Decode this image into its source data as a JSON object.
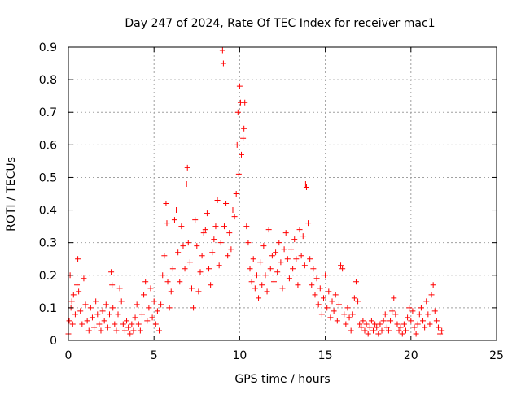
{
  "chart_data": {
    "type": "scatter",
    "title": "Day 247 of 2024, Rate Of TEC Index for receiver mac1",
    "xlabel": "GPS time / hours",
    "ylabel": "ROTI / TECUs",
    "xlim": [
      0,
      25
    ],
    "ylim": [
      0,
      0.9
    ],
    "x_ticks": [
      0,
      5,
      10,
      15,
      20,
      25
    ],
    "x_tick_labels": [
      "0",
      "5",
      "10",
      "15",
      "20",
      "25"
    ],
    "y_ticks": [
      0,
      0.1,
      0.2,
      0.3,
      0.4,
      0.5,
      0.6,
      0.7,
      0.8,
      0.9
    ],
    "y_tick_labels": [
      "0",
      "0.1",
      "0.2",
      "0.3",
      "0.4",
      "0.5",
      "0.6",
      "0.7",
      "0.8",
      "0.9"
    ],
    "grid": true,
    "marker": "+",
    "color": "#ff0000",
    "series": [
      {
        "points": [
          [
            0.0,
            0.02
          ],
          [
            0.05,
            0.06
          ],
          [
            0.1,
            0.2
          ],
          [
            0.15,
            0.1
          ],
          [
            0.2,
            0.12
          ],
          [
            0.25,
            0.05
          ],
          [
            0.3,
            0.14
          ],
          [
            0.4,
            0.08
          ],
          [
            0.5,
            0.17
          ],
          [
            0.55,
            0.25
          ],
          [
            0.6,
            0.15
          ],
          [
            0.7,
            0.09
          ],
          [
            0.8,
            0.05
          ],
          [
            0.9,
            0.19
          ],
          [
            1.0,
            0.11
          ],
          [
            1.1,
            0.06
          ],
          [
            1.2,
            0.03
          ],
          [
            1.3,
            0.1
          ],
          [
            1.4,
            0.07
          ],
          [
            1.5,
            0.04
          ],
          [
            1.6,
            0.12
          ],
          [
            1.7,
            0.08
          ],
          [
            1.8,
            0.05
          ],
          [
            1.9,
            0.03
          ],
          [
            2.0,
            0.09
          ],
          [
            2.1,
            0.06
          ],
          [
            2.2,
            0.11
          ],
          [
            2.3,
            0.04
          ],
          [
            2.4,
            0.08
          ],
          [
            2.5,
            0.21
          ],
          [
            2.55,
            0.17
          ],
          [
            2.6,
            0.1
          ],
          [
            2.7,
            0.05
          ],
          [
            2.8,
            0.03
          ],
          [
            2.9,
            0.08
          ],
          [
            3.0,
            0.16
          ],
          [
            3.1,
            0.12
          ],
          [
            3.2,
            0.05
          ],
          [
            3.3,
            0.03
          ],
          [
            3.4,
            0.06
          ],
          [
            3.5,
            0.04
          ],
          [
            3.6,
            0.02
          ],
          [
            3.7,
            0.05
          ],
          [
            3.8,
            0.03
          ],
          [
            3.9,
            0.07
          ],
          [
            4.0,
            0.11
          ],
          [
            4.1,
            0.05
          ],
          [
            4.2,
            0.03
          ],
          [
            4.3,
            0.08
          ],
          [
            4.4,
            0.14
          ],
          [
            4.5,
            0.18
          ],
          [
            4.6,
            0.06
          ],
          [
            4.7,
            0.1
          ],
          [
            4.8,
            0.16
          ],
          [
            4.9,
            0.07
          ],
          [
            5.0,
            0.12
          ],
          [
            5.1,
            0.05
          ],
          [
            5.2,
            0.09
          ],
          [
            5.3,
            0.03
          ],
          [
            5.4,
            0.11
          ],
          [
            5.5,
            0.2
          ],
          [
            5.6,
            0.26
          ],
          [
            5.7,
            0.42
          ],
          [
            5.75,
            0.36
          ],
          [
            5.8,
            0.18
          ],
          [
            5.9,
            0.1
          ],
          [
            6.0,
            0.15
          ],
          [
            6.1,
            0.22
          ],
          [
            6.2,
            0.37
          ],
          [
            6.3,
            0.4
          ],
          [
            6.4,
            0.27
          ],
          [
            6.5,
            0.18
          ],
          [
            6.6,
            0.35
          ],
          [
            6.7,
            0.29
          ],
          [
            6.8,
            0.22
          ],
          [
            6.9,
            0.48
          ],
          [
            6.95,
            0.53
          ],
          [
            7.0,
            0.3
          ],
          [
            7.1,
            0.24
          ],
          [
            7.2,
            0.16
          ],
          [
            7.3,
            0.1
          ],
          [
            7.4,
            0.37
          ],
          [
            7.5,
            0.29
          ],
          [
            7.6,
            0.15
          ],
          [
            7.7,
            0.21
          ],
          [
            7.8,
            0.26
          ],
          [
            7.9,
            0.33
          ],
          [
            8.0,
            0.34
          ],
          [
            8.1,
            0.39
          ],
          [
            8.2,
            0.22
          ],
          [
            8.3,
            0.17
          ],
          [
            8.4,
            0.27
          ],
          [
            8.5,
            0.31
          ],
          [
            8.6,
            0.35
          ],
          [
            8.7,
            0.43
          ],
          [
            8.8,
            0.23
          ],
          [
            8.9,
            0.3
          ],
          [
            9.0,
            0.89
          ],
          [
            9.05,
            0.85
          ],
          [
            9.1,
            0.35
          ],
          [
            9.2,
            0.42
          ],
          [
            9.3,
            0.26
          ],
          [
            9.4,
            0.33
          ],
          [
            9.5,
            0.28
          ],
          [
            9.6,
            0.4
          ],
          [
            9.7,
            0.38
          ],
          [
            9.8,
            0.45
          ],
          [
            9.85,
            0.6
          ],
          [
            9.9,
            0.7
          ],
          [
            9.95,
            0.51
          ],
          [
            10.0,
            0.78
          ],
          [
            10.05,
            0.73
          ],
          [
            10.1,
            0.57
          ],
          [
            10.2,
            0.62
          ],
          [
            10.25,
            0.65
          ],
          [
            10.3,
            0.73
          ],
          [
            10.4,
            0.35
          ],
          [
            10.5,
            0.3
          ],
          [
            10.6,
            0.22
          ],
          [
            10.7,
            0.18
          ],
          [
            10.8,
            0.25
          ],
          [
            10.9,
            0.16
          ],
          [
            11.0,
            0.2
          ],
          [
            11.1,
            0.13
          ],
          [
            11.2,
            0.24
          ],
          [
            11.3,
            0.17
          ],
          [
            11.4,
            0.29
          ],
          [
            11.5,
            0.2
          ],
          [
            11.6,
            0.15
          ],
          [
            11.7,
            0.34
          ],
          [
            11.8,
            0.22
          ],
          [
            11.9,
            0.26
          ],
          [
            12.0,
            0.18
          ],
          [
            12.1,
            0.27
          ],
          [
            12.2,
            0.21
          ],
          [
            12.3,
            0.3
          ],
          [
            12.4,
            0.24
          ],
          [
            12.5,
            0.16
          ],
          [
            12.6,
            0.28
          ],
          [
            12.7,
            0.33
          ],
          [
            12.8,
            0.25
          ],
          [
            12.9,
            0.19
          ],
          [
            13.0,
            0.28
          ],
          [
            13.1,
            0.22
          ],
          [
            13.2,
            0.31
          ],
          [
            13.3,
            0.25
          ],
          [
            13.4,
            0.17
          ],
          [
            13.5,
            0.34
          ],
          [
            13.6,
            0.26
          ],
          [
            13.7,
            0.32
          ],
          [
            13.8,
            0.23
          ],
          [
            13.85,
            0.48
          ],
          [
            13.9,
            0.47
          ],
          [
            14.0,
            0.36
          ],
          [
            14.1,
            0.25
          ],
          [
            14.2,
            0.17
          ],
          [
            14.3,
            0.22
          ],
          [
            14.4,
            0.14
          ],
          [
            14.5,
            0.19
          ],
          [
            14.6,
            0.11
          ],
          [
            14.7,
            0.16
          ],
          [
            14.8,
            0.08
          ],
          [
            14.9,
            0.13
          ],
          [
            15.0,
            0.2
          ],
          [
            15.1,
            0.1
          ],
          [
            15.2,
            0.15
          ],
          [
            15.3,
            0.07
          ],
          [
            15.4,
            0.12
          ],
          [
            15.5,
            0.09
          ],
          [
            15.6,
            0.14
          ],
          [
            15.7,
            0.06
          ],
          [
            15.8,
            0.11
          ],
          [
            15.9,
            0.23
          ],
          [
            16.0,
            0.22
          ],
          [
            16.1,
            0.08
          ],
          [
            16.2,
            0.05
          ],
          [
            16.3,
            0.1
          ],
          [
            16.4,
            0.07
          ],
          [
            16.5,
            0.03
          ],
          [
            16.6,
            0.08
          ],
          [
            16.7,
            0.13
          ],
          [
            16.8,
            0.18
          ],
          [
            16.9,
            0.12
          ],
          [
            17.0,
            0.05
          ],
          [
            17.1,
            0.04
          ],
          [
            17.2,
            0.06
          ],
          [
            17.3,
            0.03
          ],
          [
            17.4,
            0.05
          ],
          [
            17.5,
            0.02
          ],
          [
            17.6,
            0.04
          ],
          [
            17.7,
            0.06
          ],
          [
            17.8,
            0.03
          ],
          [
            17.9,
            0.05
          ],
          [
            18.0,
            0.04
          ],
          [
            18.1,
            0.02
          ],
          [
            18.2,
            0.05
          ],
          [
            18.3,
            0.03
          ],
          [
            18.4,
            0.06
          ],
          [
            18.5,
            0.08
          ],
          [
            18.6,
            0.04
          ],
          [
            18.7,
            0.03
          ],
          [
            18.8,
            0.06
          ],
          [
            18.9,
            0.09
          ],
          [
            19.0,
            0.13
          ],
          [
            19.1,
            0.08
          ],
          [
            19.2,
            0.05
          ],
          [
            19.3,
            0.03
          ],
          [
            19.4,
            0.04
          ],
          [
            19.5,
            0.02
          ],
          [
            19.6,
            0.05
          ],
          [
            19.7,
            0.03
          ],
          [
            19.8,
            0.07
          ],
          [
            19.9,
            0.1
          ],
          [
            20.0,
            0.06
          ],
          [
            20.1,
            0.09
          ],
          [
            20.2,
            0.04
          ],
          [
            20.3,
            0.02
          ],
          [
            20.4,
            0.05
          ],
          [
            20.5,
            0.08
          ],
          [
            20.6,
            0.1
          ],
          [
            20.7,
            0.06
          ],
          [
            20.8,
            0.04
          ],
          [
            20.9,
            0.12
          ],
          [
            21.0,
            0.08
          ],
          [
            21.1,
            0.05
          ],
          [
            21.2,
            0.14
          ],
          [
            21.3,
            0.17
          ],
          [
            21.4,
            0.09
          ],
          [
            21.5,
            0.06
          ],
          [
            21.6,
            0.04
          ],
          [
            21.7,
            0.02
          ],
          [
            21.8,
            0.03
          ]
        ]
      }
    ]
  }
}
